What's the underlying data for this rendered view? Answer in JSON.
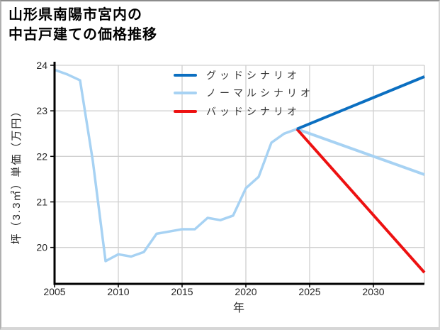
{
  "page": {
    "title_line1": "山形県南陽市宮内の",
    "title_line2": "中古戸建ての価格推移"
  },
  "chart_data": {
    "type": "line",
    "title": "山形県南陽市宮内の中古戸建ての価格推移",
    "xlabel": "年",
    "ylabel": "坪（3.3㎡）単価（万円）",
    "x_ticks": [
      2005,
      2010,
      2015,
      2020,
      2025,
      2030
    ],
    "y_ticks": [
      20,
      21,
      22,
      23,
      24
    ],
    "xlim": [
      2005,
      2034
    ],
    "ylim": [
      19.2,
      24
    ],
    "grid": true,
    "legend_position": "upper-center-inside",
    "colors": {
      "good": "#0b6fc1",
      "normal": "#a7d2f3",
      "bad": "#ed1111",
      "history": "#a7d2f3",
      "gridline": "#d0d0d0",
      "axis": "#000000"
    },
    "history": {
      "years": [
        2005,
        2006,
        2007,
        2008,
        2009,
        2010,
        2011,
        2012,
        2013,
        2014,
        2015,
        2016,
        2017,
        2018,
        2019,
        2020,
        2021,
        2022,
        2023,
        2024
      ],
      "values": [
        23.9,
        23.8,
        23.67,
        21.9,
        19.7,
        19.85,
        19.8,
        19.9,
        20.3,
        20.35,
        20.4,
        20.4,
        20.65,
        20.6,
        20.7,
        21.3,
        21.55,
        22.3,
        22.5,
        22.6
      ]
    },
    "scenarios": [
      {
        "name": "グッドシナリオ",
        "color": "#0b6fc1",
        "years": [
          2024,
          2034
        ],
        "values": [
          22.6,
          23.75
        ]
      },
      {
        "name": "ノーマルシナリオ",
        "color": "#a7d2f3",
        "years": [
          2024,
          2034
        ],
        "values": [
          22.6,
          21.6
        ]
      },
      {
        "name": "バッドシナリオ",
        "color": "#ed1111",
        "years": [
          2024,
          2034
        ],
        "values": [
          22.6,
          19.45
        ]
      }
    ]
  }
}
